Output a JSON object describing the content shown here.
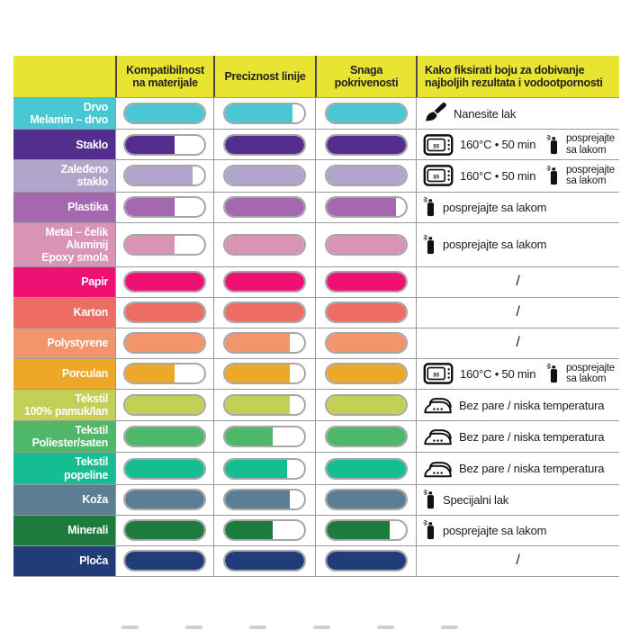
{
  "chart_data": {
    "type": "table",
    "title": "",
    "legend_position": "none",
    "bar_scale": "percent of pill filled (0-100)",
    "columns": [
      "Kompatibilnost na materijale",
      "Preciznost linije",
      "Snaga pokrivenosti",
      "Kako fiksirati boju za dobivanje najboljih rezultata i vodootpornosti"
    ],
    "rows": [
      {
        "label": "Drvo\nMelamin – drvo",
        "color": "#49c7d2",
        "bars": [
          100,
          85,
          100
        ],
        "fix": {
          "align": "left",
          "parts": [
            {
              "icon": "brush",
              "text": "Nanesite lak"
            }
          ]
        }
      },
      {
        "label": "Staklo",
        "color": "#542e8f",
        "bars": [
          62,
          100,
          100
        ],
        "fix": {
          "align": "split",
          "parts": [
            {
              "icon": "oven",
              "text": "160°C • 50 min"
            },
            {
              "icon": "spray",
              "text": "posprejajte\nsa lakom"
            }
          ]
        }
      },
      {
        "label": "Zaleđeno\nstaklo",
        "color": "#b1a5cb",
        "bars": [
          85,
          100,
          100
        ],
        "fix": {
          "align": "split",
          "parts": [
            {
              "icon": "oven",
              "text": "160°C • 50 min"
            },
            {
              "icon": "spray",
              "text": "posprejajte\nsa lakom"
            }
          ]
        }
      },
      {
        "label": "Plastika",
        "color": "#a667b1",
        "bars": [
          62,
          100,
          88
        ],
        "fix": {
          "align": "left",
          "parts": [
            {
              "icon": "spray",
              "text": "posprejajte sa lakom"
            }
          ]
        }
      },
      {
        "label": "Metal – čelik\nAluminij\nEpoxy smola",
        "color": "#d893b5",
        "bars": [
          62,
          100,
          100
        ],
        "fix": {
          "align": "left",
          "parts": [
            {
              "icon": "spray",
              "text": "posprejajte sa lakom"
            }
          ]
        }
      },
      {
        "label": "Papir",
        "color": "#ee1173",
        "bars": [
          100,
          100,
          100
        ],
        "fix": {
          "align": "center",
          "parts": [
            {
              "icon": null,
              "text": "/"
            }
          ]
        }
      },
      {
        "label": "Karton",
        "color": "#ed6d64",
        "bars": [
          100,
          100,
          100
        ],
        "fix": {
          "align": "center",
          "parts": [
            {
              "icon": null,
              "text": "/"
            }
          ]
        }
      },
      {
        "label": "Polystyrene",
        "color": "#f2946c",
        "bars": [
          100,
          82,
          100
        ],
        "fix": {
          "align": "center",
          "parts": [
            {
              "icon": null,
              "text": "/"
            }
          ]
        }
      },
      {
        "label": "Porculan",
        "color": "#eda827",
        "bars": [
          62,
          82,
          100
        ],
        "fix": {
          "align": "split",
          "parts": [
            {
              "icon": "oven",
              "text": "160°C • 50 min"
            },
            {
              "icon": "spray",
              "text": "posprejajte\nsa lakom"
            }
          ]
        }
      },
      {
        "label": "Tekstil\n100% pamuk/lan",
        "color": "#c3cf55",
        "bars": [
          100,
          82,
          100
        ],
        "fix": {
          "align": "left",
          "parts": [
            {
              "icon": "iron",
              "text": "Bez pare / niska temperatura"
            }
          ]
        }
      },
      {
        "label": "Tekstil\nPoliester/saten",
        "color": "#4eb768",
        "bars": [
          100,
          60,
          100
        ],
        "fix": {
          "align": "left",
          "parts": [
            {
              "icon": "iron",
              "text": "Bez pare / niska temperatura"
            }
          ]
        }
      },
      {
        "label": "Tekstil\npopeline",
        "color": "#16bd92",
        "bars": [
          100,
          78,
          100
        ],
        "fix": {
          "align": "left",
          "parts": [
            {
              "icon": "iron",
              "text": "Bez pare / niska temperatura"
            }
          ]
        }
      },
      {
        "label": "Koža",
        "color": "#5b7e95",
        "bars": [
          100,
          82,
          100
        ],
        "fix": {
          "align": "left",
          "parts": [
            {
              "icon": "spray",
              "text": "Specijalni lak"
            }
          ]
        }
      },
      {
        "label": "Minerali",
        "color": "#1d7b3e",
        "bars": [
          100,
          60,
          80
        ],
        "fix": {
          "align": "left",
          "parts": [
            {
              "icon": "spray",
              "text": "posprejajte sa lakom"
            }
          ]
        }
      },
      {
        "label": "Ploča",
        "color": "#203d79",
        "bars": [
          100,
          100,
          100
        ],
        "fix": {
          "align": "center",
          "parts": [
            {
              "icon": null,
              "text": "/"
            }
          ]
        }
      }
    ]
  },
  "colors": {
    "header_bg": "#e9e431",
    "grid_line": "#9a9a9a",
    "header_divider": "#4a4a4a",
    "icon_ink": "#111111"
  },
  "footer_marks": {
    "count": 6
  }
}
